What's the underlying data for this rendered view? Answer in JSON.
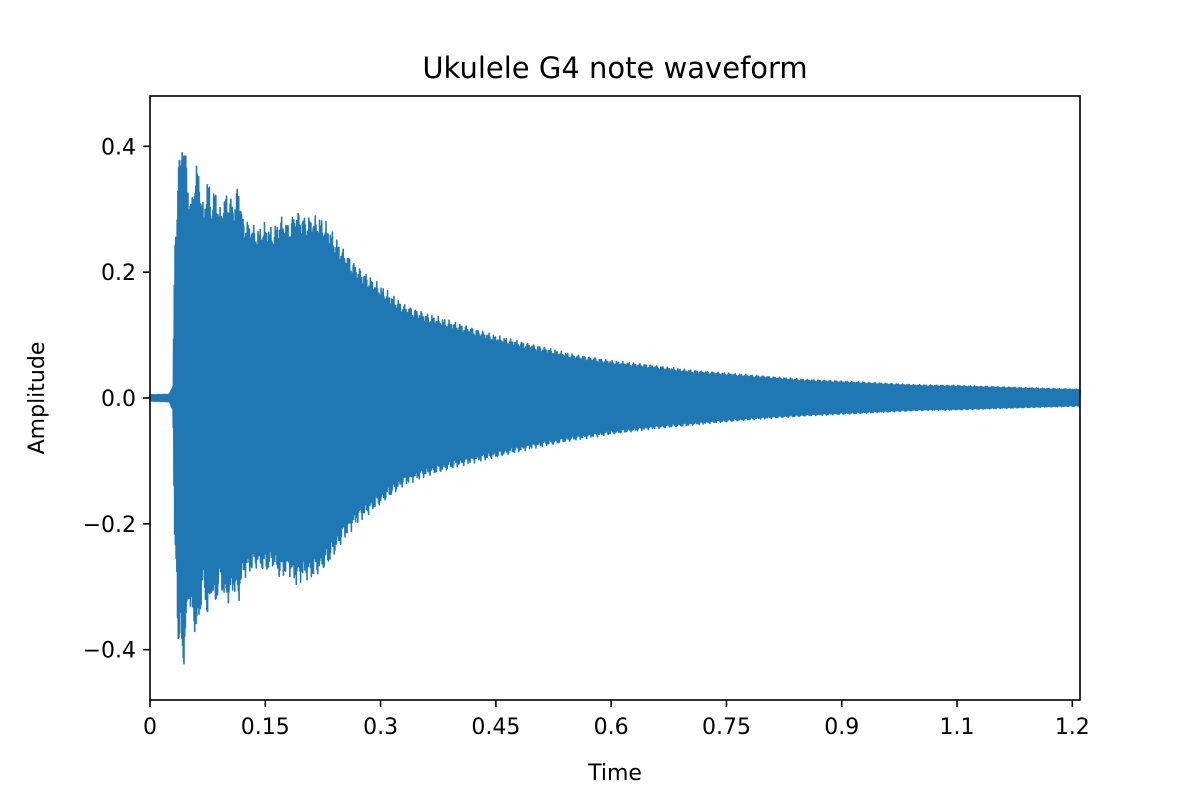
{
  "chart_data": {
    "type": "line",
    "title": "Ukulele G4 note waveform",
    "xlabel": "Time",
    "ylabel": "Amplitude",
    "xlim": [
      0,
      1.21
    ],
    "ylim": [
      -0.48,
      0.48
    ],
    "x_ticks": [
      0,
      0.15,
      0.3,
      0.45,
      0.6,
      0.75,
      0.9,
      1.05,
      1.2
    ],
    "x_tick_labels": [
      "0",
      "0.15",
      "0.3",
      "0.45",
      "0.6",
      "0.75",
      "0.9",
      "1.1",
      "1.2"
    ],
    "y_ticks": [
      0.4,
      0.2,
      0.0,
      -0.2,
      -0.4
    ],
    "y_tick_labels": [
      "0.4",
      "0.2",
      "0.0",
      "−0.2",
      "−0.4"
    ],
    "grid": false,
    "series": [
      {
        "color": "#1f77b4",
        "envelope": {
          "time": [
            0,
            0.025,
            0.03,
            0.032,
            0.035,
            0.037,
            0.04,
            0.043,
            0.046,
            0.05,
            0.055,
            0.06,
            0.065,
            0.07,
            0.075,
            0.08,
            0.085,
            0.09,
            0.1,
            0.11,
            0.115,
            0.12,
            0.13,
            0.14,
            0.15,
            0.16,
            0.17,
            0.18,
            0.19,
            0.2,
            0.21,
            0.22,
            0.23,
            0.24,
            0.25,
            0.27,
            0.3,
            0.33,
            0.36,
            0.4,
            0.45,
            0.5,
            0.55,
            0.6,
            0.65,
            0.7,
            0.75,
            0.8,
            0.85,
            0.9,
            0.95,
            1.0,
            1.05,
            1.1,
            1.15,
            1.21
          ],
          "upper": [
            0.005,
            0.006,
            0.02,
            0.24,
            0.28,
            0.42,
            0.36,
            0.44,
            0.4,
            0.33,
            0.32,
            0.38,
            0.35,
            0.3,
            0.36,
            0.31,
            0.34,
            0.3,
            0.33,
            0.31,
            0.35,
            0.29,
            0.28,
            0.27,
            0.28,
            0.27,
            0.29,
            0.28,
            0.3,
            0.29,
            0.29,
            0.29,
            0.28,
            0.26,
            0.24,
            0.21,
            0.18,
            0.15,
            0.135,
            0.12,
            0.1,
            0.085,
            0.07,
            0.06,
            0.053,
            0.045,
            0.04,
            0.035,
            0.03,
            0.027,
            0.024,
            0.021,
            0.02,
            0.018,
            0.016,
            0.014
          ],
          "lower": [
            -0.005,
            -0.006,
            -0.02,
            -0.24,
            -0.3,
            -0.42,
            -0.37,
            -0.44,
            -0.4,
            -0.32,
            -0.36,
            -0.38,
            -0.35,
            -0.3,
            -0.36,
            -0.31,
            -0.34,
            -0.3,
            -0.33,
            -0.31,
            -0.33,
            -0.29,
            -0.28,
            -0.27,
            -0.28,
            -0.27,
            -0.29,
            -0.28,
            -0.3,
            -0.29,
            -0.29,
            -0.28,
            -0.27,
            -0.25,
            -0.23,
            -0.2,
            -0.17,
            -0.14,
            -0.125,
            -0.11,
            -0.095,
            -0.08,
            -0.068,
            -0.058,
            -0.05,
            -0.044,
            -0.038,
            -0.033,
            -0.029,
            -0.026,
            -0.023,
            -0.02,
            -0.019,
            -0.017,
            -0.015,
            -0.013
          ]
        }
      }
    ]
  }
}
